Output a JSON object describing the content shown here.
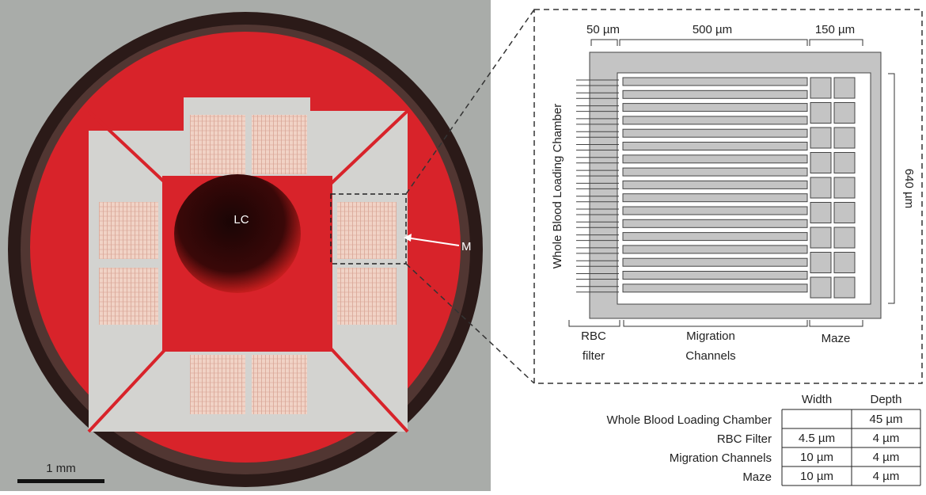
{
  "photo": {
    "chamber_label": "LC",
    "channels_label": "M",
    "scale_bar": "1 mm"
  },
  "schematic": {
    "dimensions": [
      "50 µm",
      "500 µm",
      "150 µm",
      "640 µm"
    ],
    "side_label": "Whole Blood Loading Chamber",
    "sections": [
      [
        "RBC",
        "filter"
      ],
      [
        "Migration",
        "Channels"
      ],
      [
        "Maze"
      ]
    ]
  },
  "table": {
    "columns": [
      "Width",
      "Depth"
    ],
    "rows": [
      [
        "Whole Blood Loading Chamber",
        null,
        "45 µm"
      ],
      [
        "RBC Filter",
        "4.5 µm",
        "4 µm"
      ],
      [
        "Migration Channels",
        "10 µm",
        "4 µm"
      ],
      [
        "Maze",
        "10 µm",
        "4 µm"
      ]
    ]
  }
}
